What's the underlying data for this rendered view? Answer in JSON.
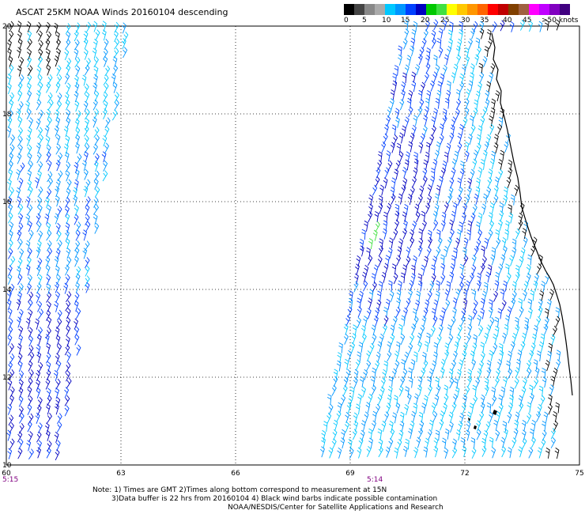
{
  "header": {
    "title": "ASCAT 25KM NOAA Winds 20160104 descending"
  },
  "legend": {
    "colors": [
      "#000000",
      "#444444",
      "#888888",
      "#aaaaaa",
      "#00c8ff",
      "#0096ff",
      "#0040ff",
      "#0000c0",
      "#00c800",
      "#40e040",
      "#ffff00",
      "#ffc800",
      "#ff9600",
      "#ff6400",
      "#ff0000",
      "#c00000",
      "#804000",
      "#a06040",
      "#ff00ff",
      "#c000ff",
      "#8000c0",
      "#400080"
    ],
    "labels": [
      "0",
      "5",
      "10",
      "15",
      "20",
      "25",
      "30",
      "35",
      "40",
      "45",
      ">50 knots"
    ]
  },
  "map": {
    "lat_labels": [
      "20",
      "18",
      "16",
      "14",
      "12",
      "10"
    ],
    "lon_labels": [
      "60",
      "63",
      "66",
      "69",
      "72",
      "75"
    ],
    "pass_times": [
      "5:15",
      "5:14"
    ]
  },
  "notes": {
    "line1": "Note: 1) Times are GMT 2)Times along bottom correspond to measurement at 15N",
    "line2": "3)Data buffer is 22 hrs from 20160104 4) Black wind barbs indicate possible contamination",
    "line3": "NOAA/NESDIS/Center for Satellite Applications and Research"
  }
}
